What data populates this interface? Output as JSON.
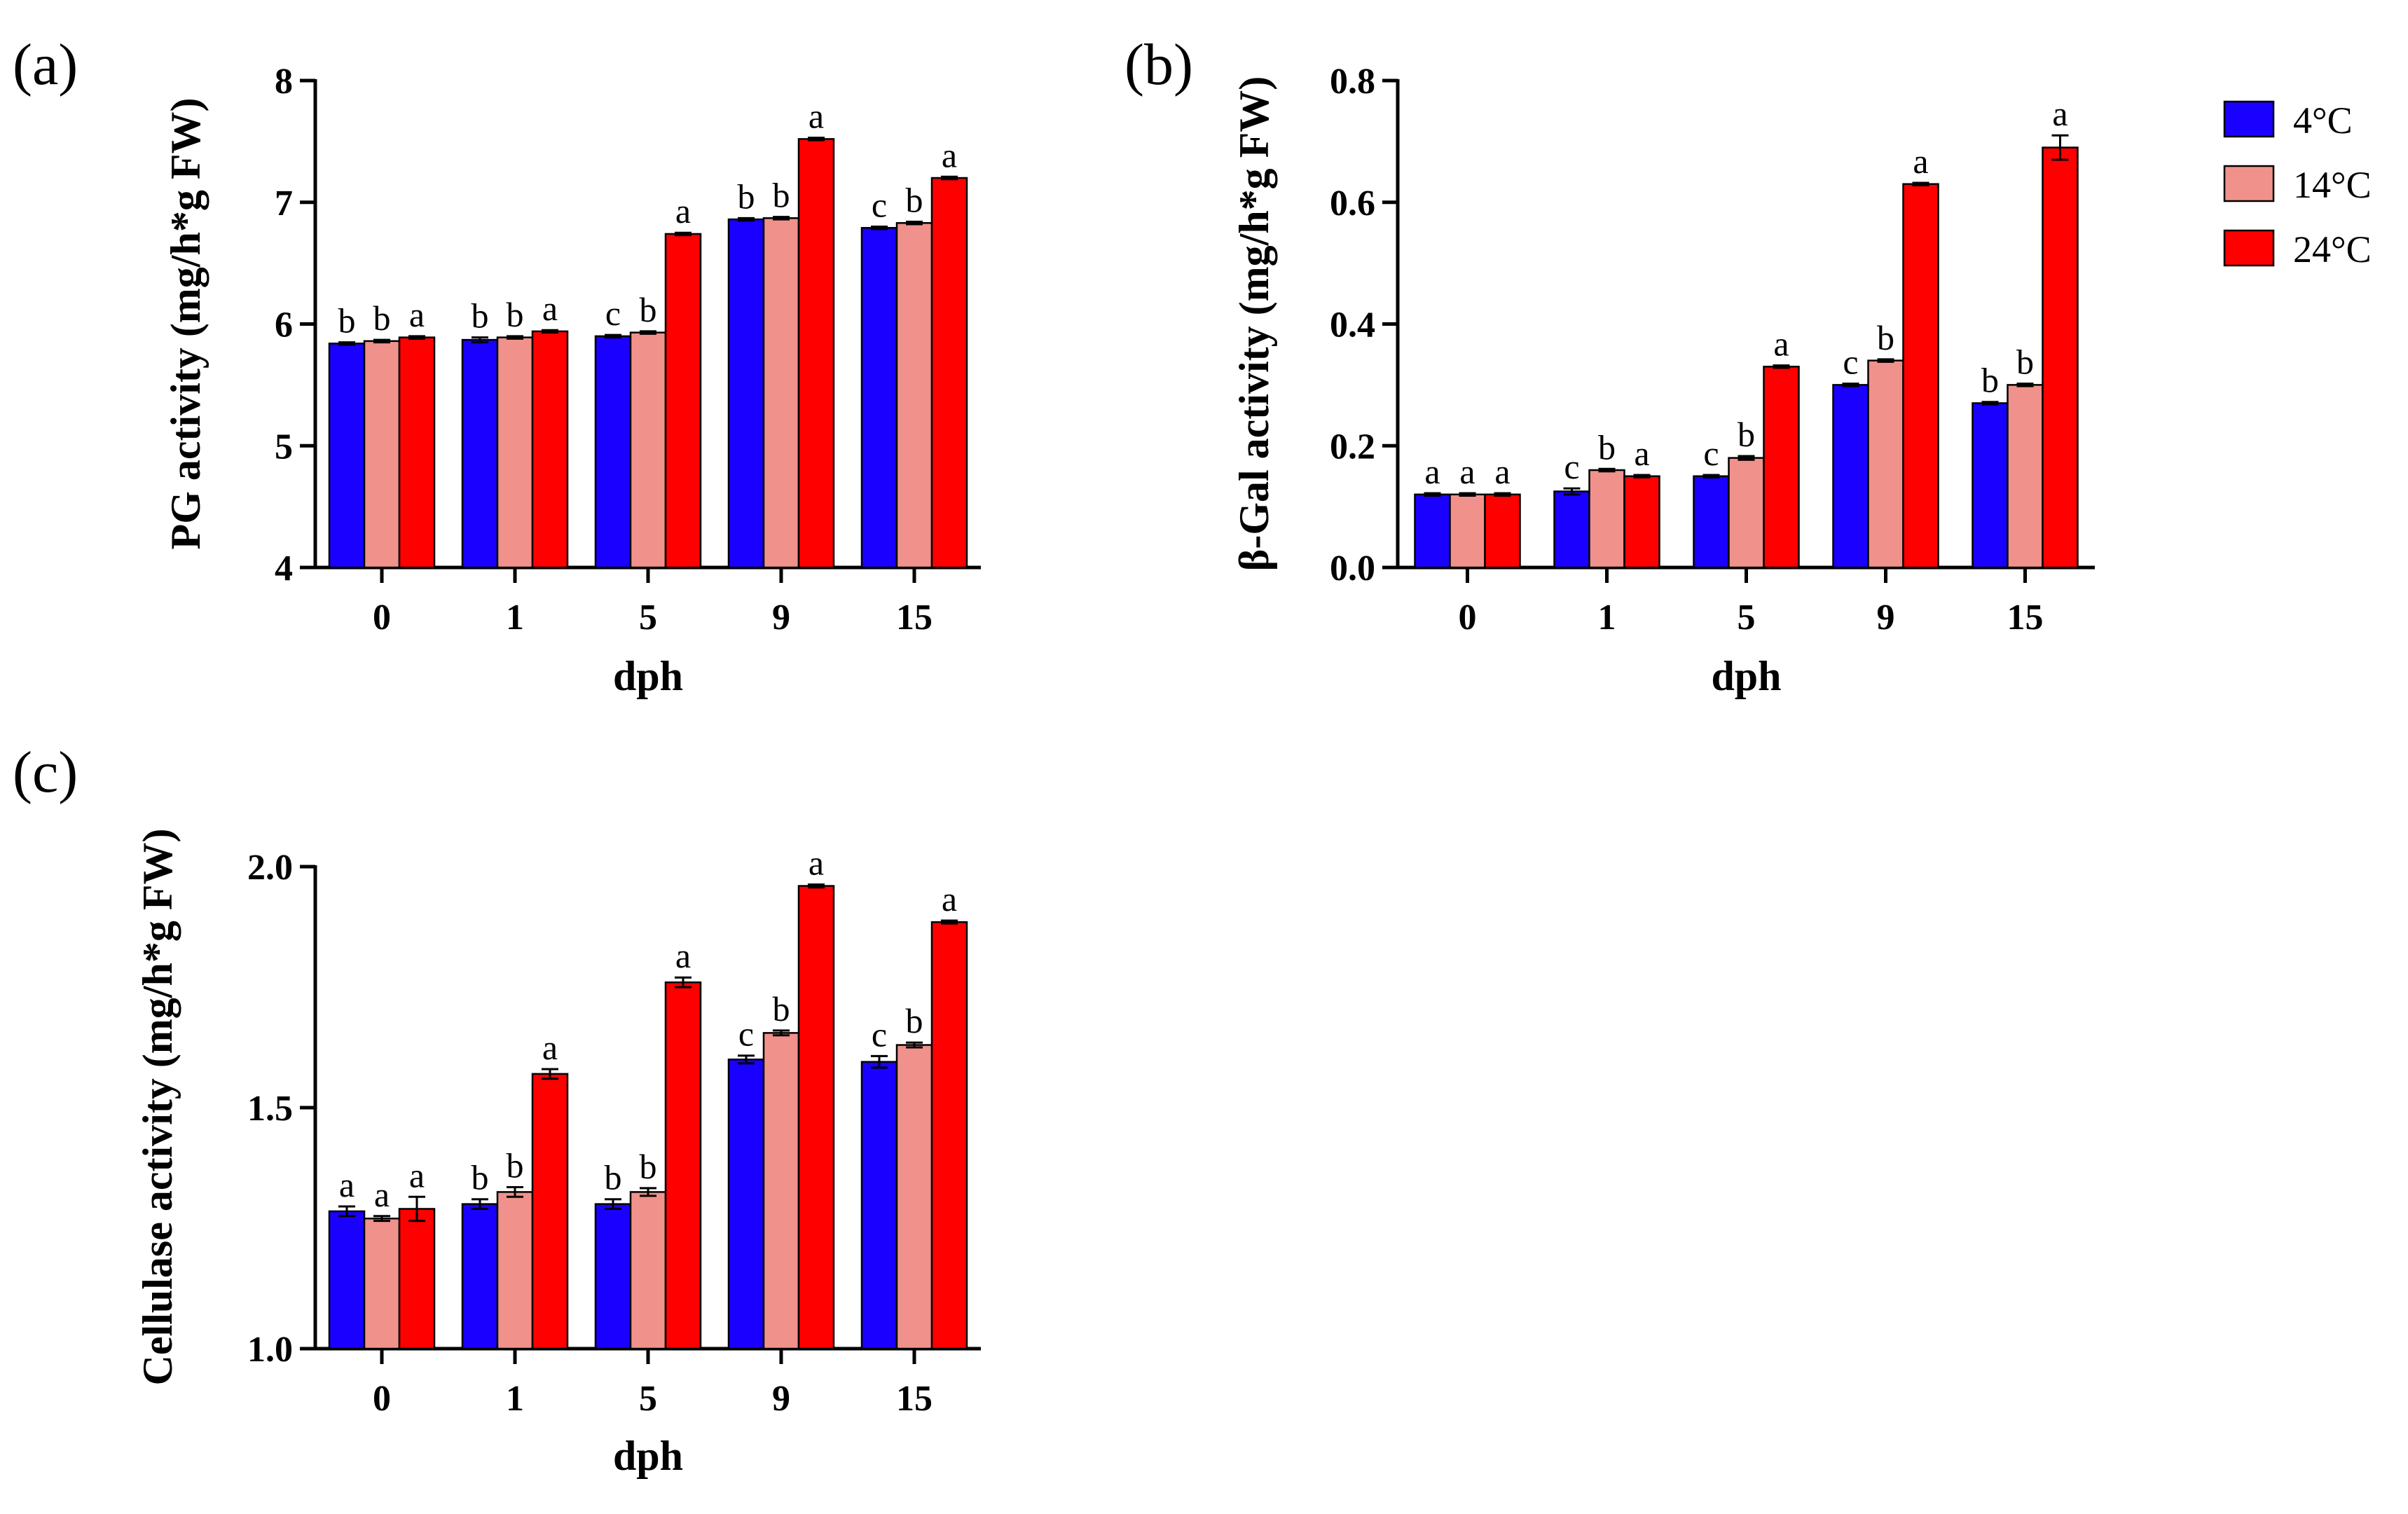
{
  "legend": {
    "items": [
      {
        "label": "4°C",
        "color": "#1a00ff"
      },
      {
        "label": "14°C",
        "color": "#f0928b"
      },
      {
        "label": "24°C",
        "color": "#ff0000"
      }
    ]
  },
  "chart_data": [
    {
      "panel": "(a)",
      "type": "bar",
      "categories": [
        "0",
        "1",
        "5",
        "9",
        "15"
      ],
      "xlabel": "dph",
      "ylabel": "PG activity (mg/h*g FW)",
      "ylim": [
        4,
        8
      ],
      "yticks": [
        "4",
        "5",
        "6",
        "7",
        "8"
      ],
      "series": [
        {
          "name": "4°C",
          "values": [
            5.84,
            5.87,
            5.9,
            6.86,
            6.79
          ],
          "errors": [
            0.01,
            0.02,
            0.01,
            0.01,
            0.01
          ],
          "letters": [
            "b",
            "b",
            "c",
            "b",
            "c"
          ]
        },
        {
          "name": "14°C",
          "values": [
            5.86,
            5.89,
            5.93,
            6.87,
            6.83
          ],
          "errors": [
            0.01,
            0.01,
            0.01,
            0.01,
            0.01
          ],
          "letters": [
            "b",
            "b",
            "b",
            "b",
            "b"
          ]
        },
        {
          "name": "24°C",
          "values": [
            5.89,
            5.94,
            6.74,
            7.52,
            7.2
          ],
          "errors": [
            0.01,
            0.01,
            0.01,
            0.01,
            0.01
          ],
          "letters": [
            "a",
            "a",
            "a",
            "a",
            "a"
          ]
        }
      ]
    },
    {
      "panel": "(b)",
      "type": "bar",
      "categories": [
        "0",
        "1",
        "5",
        "9",
        "15"
      ],
      "xlabel": "dph",
      "ylabel": "β-Gal activity (mg/h*g FW)",
      "ylim": [
        0,
        0.8
      ],
      "yticks": [
        "0.0",
        "0.2",
        "0.4",
        "0.6",
        "0.8"
      ],
      "series": [
        {
          "name": "4°C",
          "values": [
            0.12,
            0.125,
            0.15,
            0.3,
            0.27
          ],
          "errors": [
            0.002,
            0.005,
            0.002,
            0.002,
            0.002
          ],
          "letters": [
            "a",
            "c",
            "c",
            "c",
            "b"
          ]
        },
        {
          "name": "14°C",
          "values": [
            0.12,
            0.16,
            0.18,
            0.34,
            0.3
          ],
          "errors": [
            0.002,
            0.002,
            0.003,
            0.002,
            0.002
          ],
          "letters": [
            "a",
            "b",
            "b",
            "b",
            "b"
          ]
        },
        {
          "name": "24°C",
          "values": [
            0.12,
            0.15,
            0.33,
            0.63,
            0.69
          ],
          "errors": [
            0.002,
            0.002,
            0.002,
            0.002,
            0.02
          ],
          "letters": [
            "a",
            "a",
            "a",
            "a",
            "a"
          ]
        }
      ]
    },
    {
      "panel": "(c)",
      "type": "bar",
      "categories": [
        "0",
        "1",
        "5",
        "9",
        "15"
      ],
      "xlabel": "dph",
      "ylabel": "Cellulase activity (mg/h*g FW)",
      "ylim": [
        1.0,
        2.0
      ],
      "yticks": [
        "1.0",
        "1.5",
        "2.0"
      ],
      "series": [
        {
          "name": "4°C",
          "values": [
            1.285,
            1.3,
            1.3,
            1.6,
            1.595
          ],
          "errors": [
            0.01,
            0.01,
            0.01,
            0.008,
            0.012
          ],
          "letters": [
            "a",
            "b",
            "b",
            "c",
            "c"
          ]
        },
        {
          "name": "14°C",
          "values": [
            1.27,
            1.325,
            1.325,
            1.655,
            1.63
          ],
          "errors": [
            0.005,
            0.01,
            0.008,
            0.005,
            0.005
          ],
          "letters": [
            "a",
            "b",
            "b",
            "b",
            "b"
          ]
        },
        {
          "name": "24°C",
          "values": [
            1.29,
            1.57,
            1.76,
            1.96,
            1.885
          ],
          "errors": [
            0.025,
            0.01,
            0.01,
            0.003,
            0.003
          ],
          "letters": [
            "a",
            "a",
            "a",
            "a",
            "a"
          ]
        }
      ]
    }
  ]
}
